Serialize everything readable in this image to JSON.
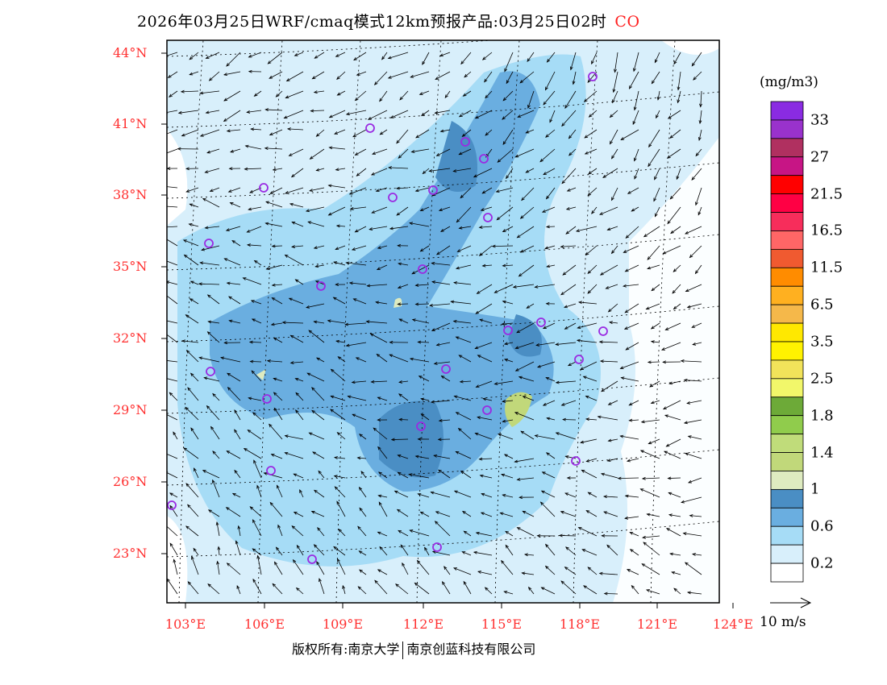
{
  "title": {
    "main": "2026年03月25日WRF/cmaq模式12km预报产品:03月25日02时",
    "species": "CO"
  },
  "lat_labels": [
    "44°N",
    "41°N",
    "38°N",
    "35°N",
    "32°N",
    "29°N",
    "26°N",
    "23°N"
  ],
  "lon_labels": [
    "103°E",
    "106°E",
    "109°E",
    "112°E",
    "115°E",
    "118°E",
    "121°E",
    "124°E"
  ],
  "colorbar": {
    "unit": "(mg/m3)",
    "colors": [
      "#8a2be2",
      "#9932cc",
      "#b03060",
      "#c71585",
      "#ff0000",
      "#ff0044",
      "#f72d5b",
      "#ff6666",
      "#f05a30",
      "#ff8c00",
      "#ffb020",
      "#f5b84a",
      "#ffe800",
      "#fff200",
      "#f2e35a",
      "#f2f76a",
      "#6daa38",
      "#90cc4c",
      "#c0dc7a",
      "#c1d87a",
      "#deebc0",
      "#4a8ec4",
      "#6aaee0",
      "#a6dcf6",
      "#d8effb",
      "#ffffff"
    ],
    "labels": [
      "33",
      "27",
      "21.5",
      "16.5",
      "11.5",
      "6.5",
      "3.5",
      "2.5",
      "1.8",
      "1.4",
      "1",
      "0.6",
      "0.2"
    ]
  },
  "wind_reference": "10 m/s",
  "footer": {
    "left": "版权所有:南京大学",
    "right": "南京创蓝科技有限公司"
  }
}
